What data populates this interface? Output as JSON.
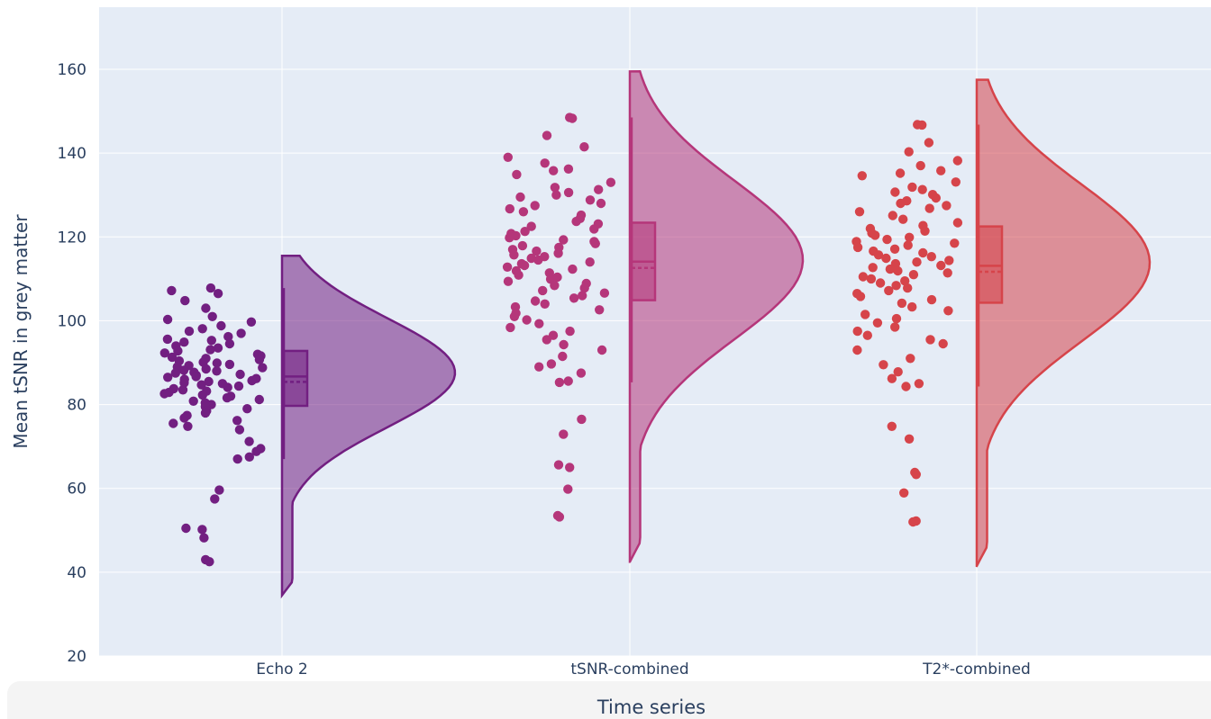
{
  "chart_data": {
    "type": "raincloud",
    "xlabel": "Time series",
    "ylabel": "Mean tSNR in grey matter",
    "categories": [
      "Echo 2",
      "tSNR-combined",
      "T2*-combined"
    ],
    "ylim": [
      20,
      175
    ],
    "yticks": [
      20,
      40,
      60,
      80,
      100,
      120,
      140,
      160
    ],
    "grid": true,
    "background": "#e5ecf6",
    "gridcolor": "#ffffff",
    "series": [
      {
        "category": "Echo 2",
        "color": "#721f81",
        "points": [
          107.8,
          106.5,
          107.2,
          104.8,
          103.0,
          101.0,
          100.3,
          99.7,
          98.8,
          98.1,
          97.5,
          97.0,
          96.2,
          95.6,
          95.3,
          94.9,
          94.5,
          94.0,
          93.5,
          93.1,
          92.8,
          92.3,
          92.0,
          91.6,
          91.3,
          91.0,
          90.7,
          90.4,
          90.1,
          89.9,
          89.6,
          89.3,
          89.0,
          88.8,
          88.5,
          88.2,
          88.0,
          87.7,
          87.5,
          87.2,
          87.0,
          86.7,
          86.5,
          86.2,
          86.0,
          85.7,
          85.5,
          85.2,
          85.0,
          84.7,
          84.4,
          84.1,
          83.8,
          83.5,
          83.2,
          82.9,
          82.6,
          82.3,
          82.0,
          81.6,
          81.2,
          80.8,
          80.4,
          80.0,
          79.5,
          79.0,
          78.5,
          78.0,
          77.4,
          76.8,
          76.2,
          75.5,
          74.8,
          74.0,
          71.2,
          69.5,
          68.8,
          67.5,
          67.0,
          59.6,
          57.5,
          50.5,
          50.2,
          48.2,
          43.0,
          42.5
        ],
        "box": {
          "upperfence": 107.8,
          "q3": 92.8,
          "median": 86.7,
          "mean": 85.4,
          "q1": 79.7,
          "lowerfence": 67.0
        },
        "violin_range": [
          34.5,
          115.5
        ],
        "violin_peak": 87.6
      },
      {
        "category": "tSNR-combined",
        "color": "#b5367a",
        "points": [
          148.5,
          148.3,
          144.2,
          141.5,
          139.0,
          137.6,
          136.2,
          135.8,
          134.9,
          133.0,
          131.8,
          131.3,
          130.6,
          130.0,
          129.5,
          128.8,
          128.0,
          127.5,
          126.7,
          126.0,
          125.2,
          124.4,
          123.7,
          123.1,
          122.5,
          121.9,
          121.3,
          120.8,
          120.3,
          119.8,
          119.3,
          118.9,
          118.4,
          117.9,
          117.5,
          117.0,
          116.6,
          116.1,
          115.7,
          115.3,
          114.9,
          114.5,
          114.0,
          113.6,
          113.2,
          112.8,
          112.3,
          111.9,
          111.4,
          110.9,
          110.4,
          109.9,
          109.4,
          108.9,
          108.4,
          107.8,
          107.2,
          106.6,
          106.0,
          105.4,
          104.7,
          104.0,
          103.3,
          102.6,
          101.8,
          101.0,
          100.2,
          99.3,
          98.4,
          97.5,
          96.5,
          95.5,
          94.3,
          93.0,
          91.5,
          89.7,
          89.0,
          87.5,
          85.6,
          85.3,
          76.5,
          72.9,
          65.6,
          65.0,
          59.8,
          53.5,
          53.2
        ],
        "box": {
          "upperfence": 148.5,
          "q3": 123.4,
          "median": 114.1,
          "mean": 112.6,
          "q1": 104.9,
          "lowerfence": 85.3
        },
        "violin_range": [
          42.5,
          159.5
        ],
        "violin_peak": 114.5
      },
      {
        "category": "T2*-combined",
        "color": "#d6444a",
        "points": [
          146.8,
          146.7,
          142.5,
          140.3,
          138.2,
          137.0,
          135.8,
          135.2,
          134.6,
          133.1,
          131.9,
          131.3,
          130.7,
          130.1,
          129.3,
          128.6,
          128.0,
          127.5,
          126.8,
          126.0,
          125.1,
          124.2,
          123.4,
          122.7,
          122.0,
          121.4,
          120.9,
          120.4,
          119.9,
          119.4,
          118.9,
          118.5,
          118.0,
          117.5,
          117.1,
          116.6,
          116.2,
          115.7,
          115.3,
          114.9,
          114.4,
          114.0,
          113.6,
          113.2,
          112.7,
          112.3,
          111.9,
          111.4,
          111.0,
          110.5,
          110.0,
          109.5,
          109.0,
          108.4,
          107.8,
          107.2,
          106.5,
          105.8,
          105.0,
          104.2,
          103.3,
          102.4,
          101.5,
          100.5,
          99.5,
          98.5,
          97.5,
          96.5,
          95.5,
          94.5,
          93.0,
          91.0,
          89.5,
          87.8,
          86.2,
          85.0,
          84.3,
          74.8,
          71.8,
          63.8,
          63.3,
          58.9,
          52.2,
          52.0
        ],
        "box": {
          "upperfence": 146.8,
          "q3": 122.5,
          "median": 113.1,
          "mean": 111.7,
          "q1": 104.3,
          "lowerfence": 84.3
        },
        "violin_range": [
          41.5,
          157.5
        ],
        "violin_peak": 113.8
      }
    ]
  }
}
